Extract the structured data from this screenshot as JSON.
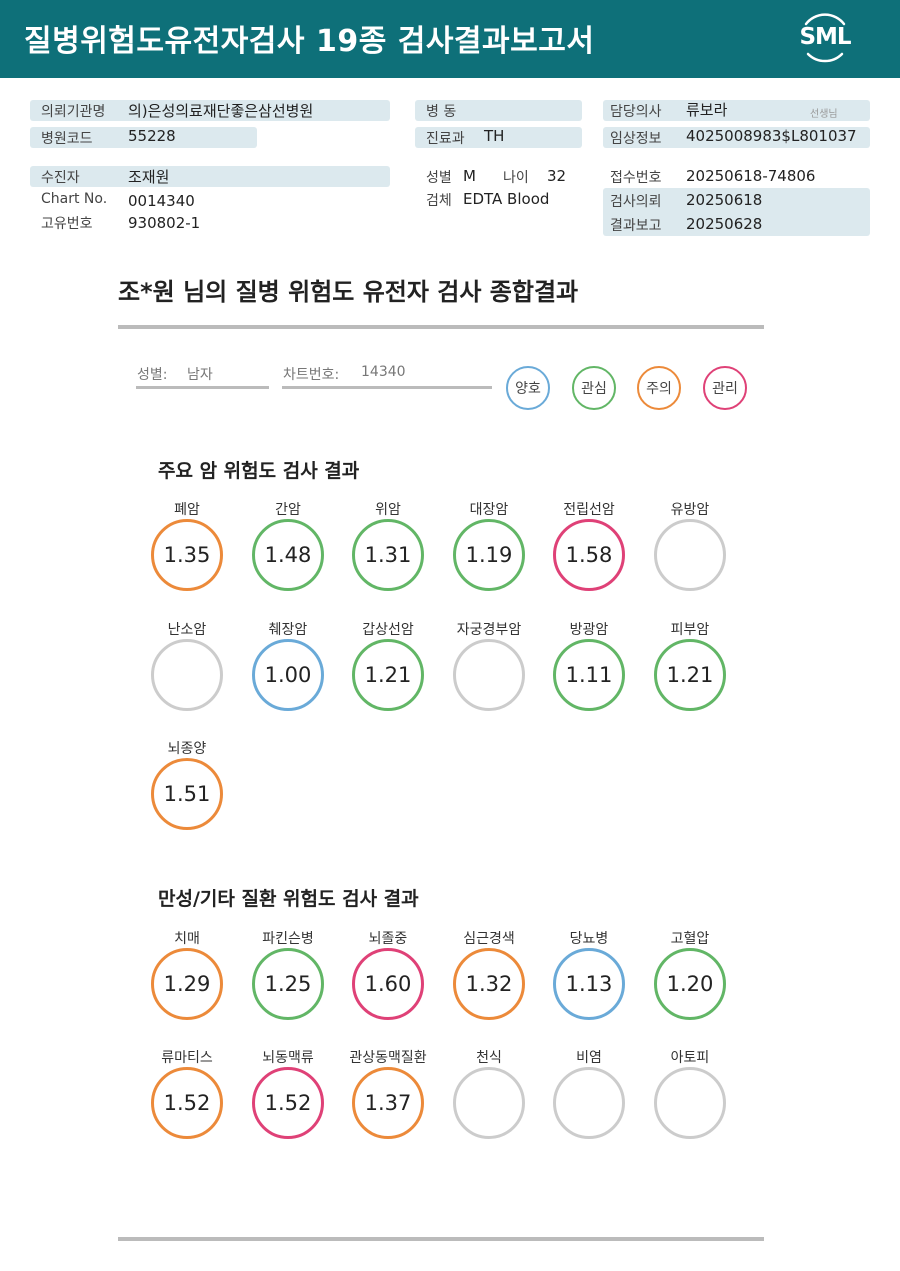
{
  "header": {
    "title": "질병위험도유전자검사 19종 검사결과보고서",
    "logo_text": "SML"
  },
  "patient_info": {
    "institution": {
      "label": "의뢰기관명",
      "value": "의)은성의료재단좋은삼선병원"
    },
    "hospital_code": {
      "label": "병원코드",
      "value": "55228"
    },
    "patient": {
      "label": "수진자",
      "value": "조재원"
    },
    "chart_no": {
      "label": "Chart No.",
      "value": "0014340"
    },
    "unique_no": {
      "label": "고유번호",
      "value": "930802-1"
    },
    "ward": {
      "label": "병 동",
      "value": ""
    },
    "department": {
      "label": "진료과",
      "value": "TH"
    },
    "sex": {
      "label": "성별",
      "value": "M"
    },
    "age": {
      "label": "나이",
      "value": "32"
    },
    "specimen": {
      "label": "검체",
      "value": "EDTA Blood"
    },
    "doctor": {
      "label": "담당의사",
      "value": "류보라",
      "suffix": "선생님"
    },
    "clinical_info": {
      "label": "임상정보",
      "value": "4025008983$L801037"
    },
    "receipt_no": {
      "label": "접수번호",
      "value": "20250618-74806"
    },
    "request_date": {
      "label": "검사의뢰",
      "value": "20250618"
    },
    "report_date": {
      "label": "결과보고",
      "value": "20250628"
    }
  },
  "summary": {
    "title": "조*원 님의 질병 위험도 유전자 검사 종합결과",
    "sex_label": "성별:",
    "sex_value": "남자",
    "chart_label": "차트번호:",
    "chart_value": "14340"
  },
  "colors": {
    "good": "#6aaad8",
    "interest": "#62b666",
    "caution": "#ec8a3a",
    "manage": "#df4177",
    "none": "#cccccc"
  },
  "legend": [
    {
      "label": "양호",
      "level": "good"
    },
    {
      "label": "관심",
      "level": "interest"
    },
    {
      "label": "주의",
      "level": "caution"
    },
    {
      "label": "관리",
      "level": "manage"
    }
  ],
  "cancer_section": {
    "title": "주요 암 위험도 검사 결과",
    "items": [
      {
        "name": "폐암",
        "value": "1.35",
        "level": "caution"
      },
      {
        "name": "간암",
        "value": "1.48",
        "level": "interest"
      },
      {
        "name": "위암",
        "value": "1.31",
        "level": "interest"
      },
      {
        "name": "대장암",
        "value": "1.19",
        "level": "interest"
      },
      {
        "name": "전립선암",
        "value": "1.58",
        "level": "manage"
      },
      {
        "name": "유방암",
        "value": "",
        "level": "none"
      },
      {
        "name": "난소암",
        "value": "",
        "level": "none"
      },
      {
        "name": "췌장암",
        "value": "1.00",
        "level": "good"
      },
      {
        "name": "갑상선암",
        "value": "1.21",
        "level": "interest"
      },
      {
        "name": "자궁경부암",
        "value": "",
        "level": "none"
      },
      {
        "name": "방광암",
        "value": "1.11",
        "level": "interest"
      },
      {
        "name": "피부암",
        "value": "1.21",
        "level": "interest"
      },
      {
        "name": "뇌종양",
        "value": "1.51",
        "level": "caution"
      }
    ]
  },
  "chronic_section": {
    "title": "만성/기타 질환 위험도 검사 결과",
    "items": [
      {
        "name": "치매",
        "value": "1.29",
        "level": "caution"
      },
      {
        "name": "파킨슨병",
        "value": "1.25",
        "level": "interest"
      },
      {
        "name": "뇌졸중",
        "value": "1.60",
        "level": "manage"
      },
      {
        "name": "심근경색",
        "value": "1.32",
        "level": "caution"
      },
      {
        "name": "당뇨병",
        "value": "1.13",
        "level": "good"
      },
      {
        "name": "고혈압",
        "value": "1.20",
        "level": "interest"
      },
      {
        "name": "류마티스",
        "value": "1.52",
        "level": "caution"
      },
      {
        "name": "뇌동맥류",
        "value": "1.52",
        "level": "manage"
      },
      {
        "name": "관상동맥질환",
        "value": "1.37",
        "level": "caution"
      },
      {
        "name": "천식",
        "value": "",
        "level": "none"
      },
      {
        "name": "비염",
        "value": "",
        "level": "none"
      },
      {
        "name": "아토피",
        "value": "",
        "level": "none"
      }
    ]
  }
}
